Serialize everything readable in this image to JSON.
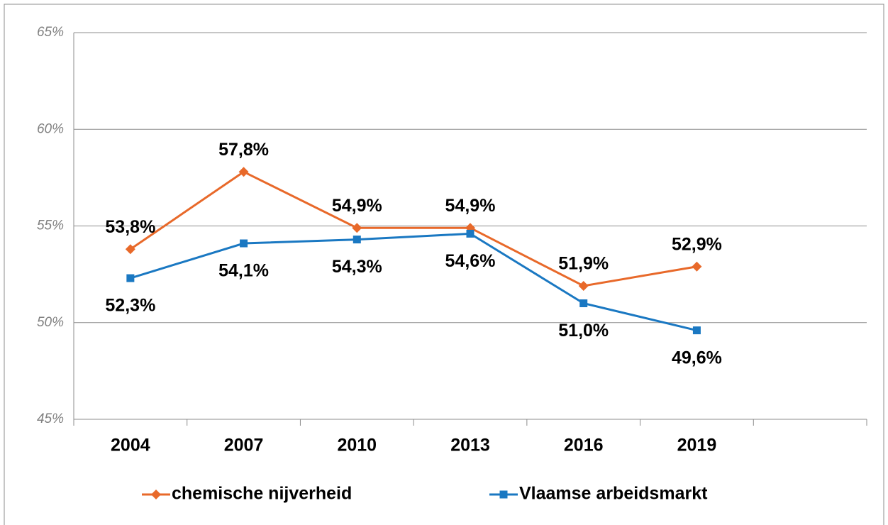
{
  "chart_data": {
    "type": "line",
    "categories": [
      "2004",
      "2007",
      "2010",
      "2013",
      "2016",
      "2019",
      null
    ],
    "series": [
      {
        "name": "chemische nijverheid",
        "color": "#e8692a",
        "marker": "diamond",
        "values": [
          53.8,
          57.8,
          54.9,
          54.9,
          51.9,
          52.9,
          null
        ],
        "value_labels": [
          "53,8%",
          "57,8%",
          "54,9%",
          "54,9%",
          "51,9%",
          "52,9%",
          null
        ]
      },
      {
        "name": "Vlaamse arbeidsmarkt",
        "color": "#1a78c2",
        "marker": "square",
        "values": [
          52.3,
          54.1,
          54.3,
          54.6,
          51.0,
          49.6,
          null
        ],
        "value_labels": [
          "52,3%",
          "54,1%",
          "54,3%",
          "54,6%",
          "51,0%",
          "49,6%",
          null
        ]
      }
    ],
    "ylim": [
      45,
      65
    ],
    "yticks": [
      {
        "value": 45,
        "label": "45%"
      },
      {
        "value": 50,
        "label": "50%"
      },
      {
        "value": 55,
        "label": "55%"
      },
      {
        "value": 60,
        "label": "60%"
      },
      {
        "value": 65,
        "label": "65%"
      }
    ],
    "grid": true,
    "legend": "bottom"
  }
}
